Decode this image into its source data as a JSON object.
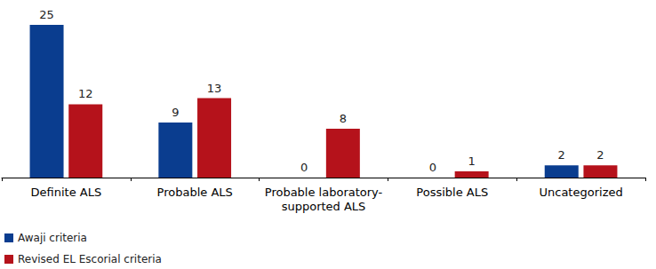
{
  "chart_data": {
    "type": "bar",
    "categories": [
      "Definite ALS",
      "Probable ALS",
      "Probable laboratory-\nsupported ALS",
      "Possible ALS",
      "Uncategorized"
    ],
    "series": [
      {
        "name": "Awaji criteria",
        "color": "#0a3d8f",
        "values": [
          25,
          9,
          0,
          0,
          2
        ]
      },
      {
        "name": "Revised EL Escorial criteria",
        "color": "#b5121b",
        "values": [
          12,
          13,
          8,
          1,
          2
        ]
      }
    ],
    "ylim": [
      0,
      25
    ],
    "yticks": [
      0,
      25
    ],
    "grid": false,
    "data_labels": true,
    "tick_labels": "x",
    "legend": "lower left"
  }
}
